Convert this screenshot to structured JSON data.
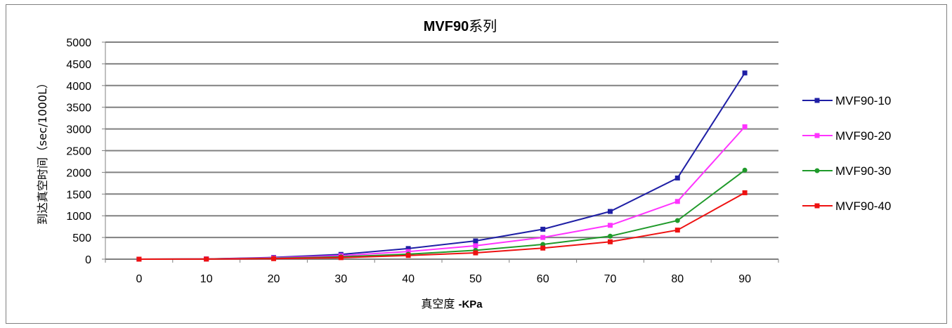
{
  "chart_data": {
    "type": "line",
    "title_bold": "MVF90",
    "title_rest": "系列",
    "xlabel_main": "真空度 ",
    "xlabel_unit": "-KPa",
    "ylabel": "到达真空时间（sec/1000L）",
    "categories": [
      "0",
      "10",
      "20",
      "30",
      "40",
      "50",
      "60",
      "70",
      "80",
      "90"
    ],
    "ylim": [
      0,
      5000
    ],
    "yticks": [
      0,
      500,
      1000,
      1500,
      2000,
      2500,
      3000,
      3500,
      4000,
      4500,
      5000
    ],
    "grid": true,
    "legend_position": "right",
    "series": [
      {
        "name": "MVF90-10",
        "color": "#1f1fa5",
        "marker": "square",
        "values": [
          0,
          5,
          40,
          110,
          245,
          420,
          690,
          1100,
          1870,
          4290
        ]
      },
      {
        "name": "MVF90-20",
        "color": "#ff33ff",
        "marker": "square",
        "values": [
          0,
          5,
          30,
          80,
          175,
          310,
          500,
          780,
          1330,
          3050
        ]
      },
      {
        "name": "MVF90-30",
        "color": "#1f9a2a",
        "marker": "circle",
        "values": [
          0,
          3,
          20,
          55,
          115,
          205,
          340,
          530,
          890,
          2050
        ]
      },
      {
        "name": "MVF90-40",
        "color": "#ee1111",
        "marker": "square",
        "values": [
          0,
          2,
          12,
          35,
          85,
          145,
          255,
          400,
          670,
          1530
        ]
      }
    ]
  }
}
